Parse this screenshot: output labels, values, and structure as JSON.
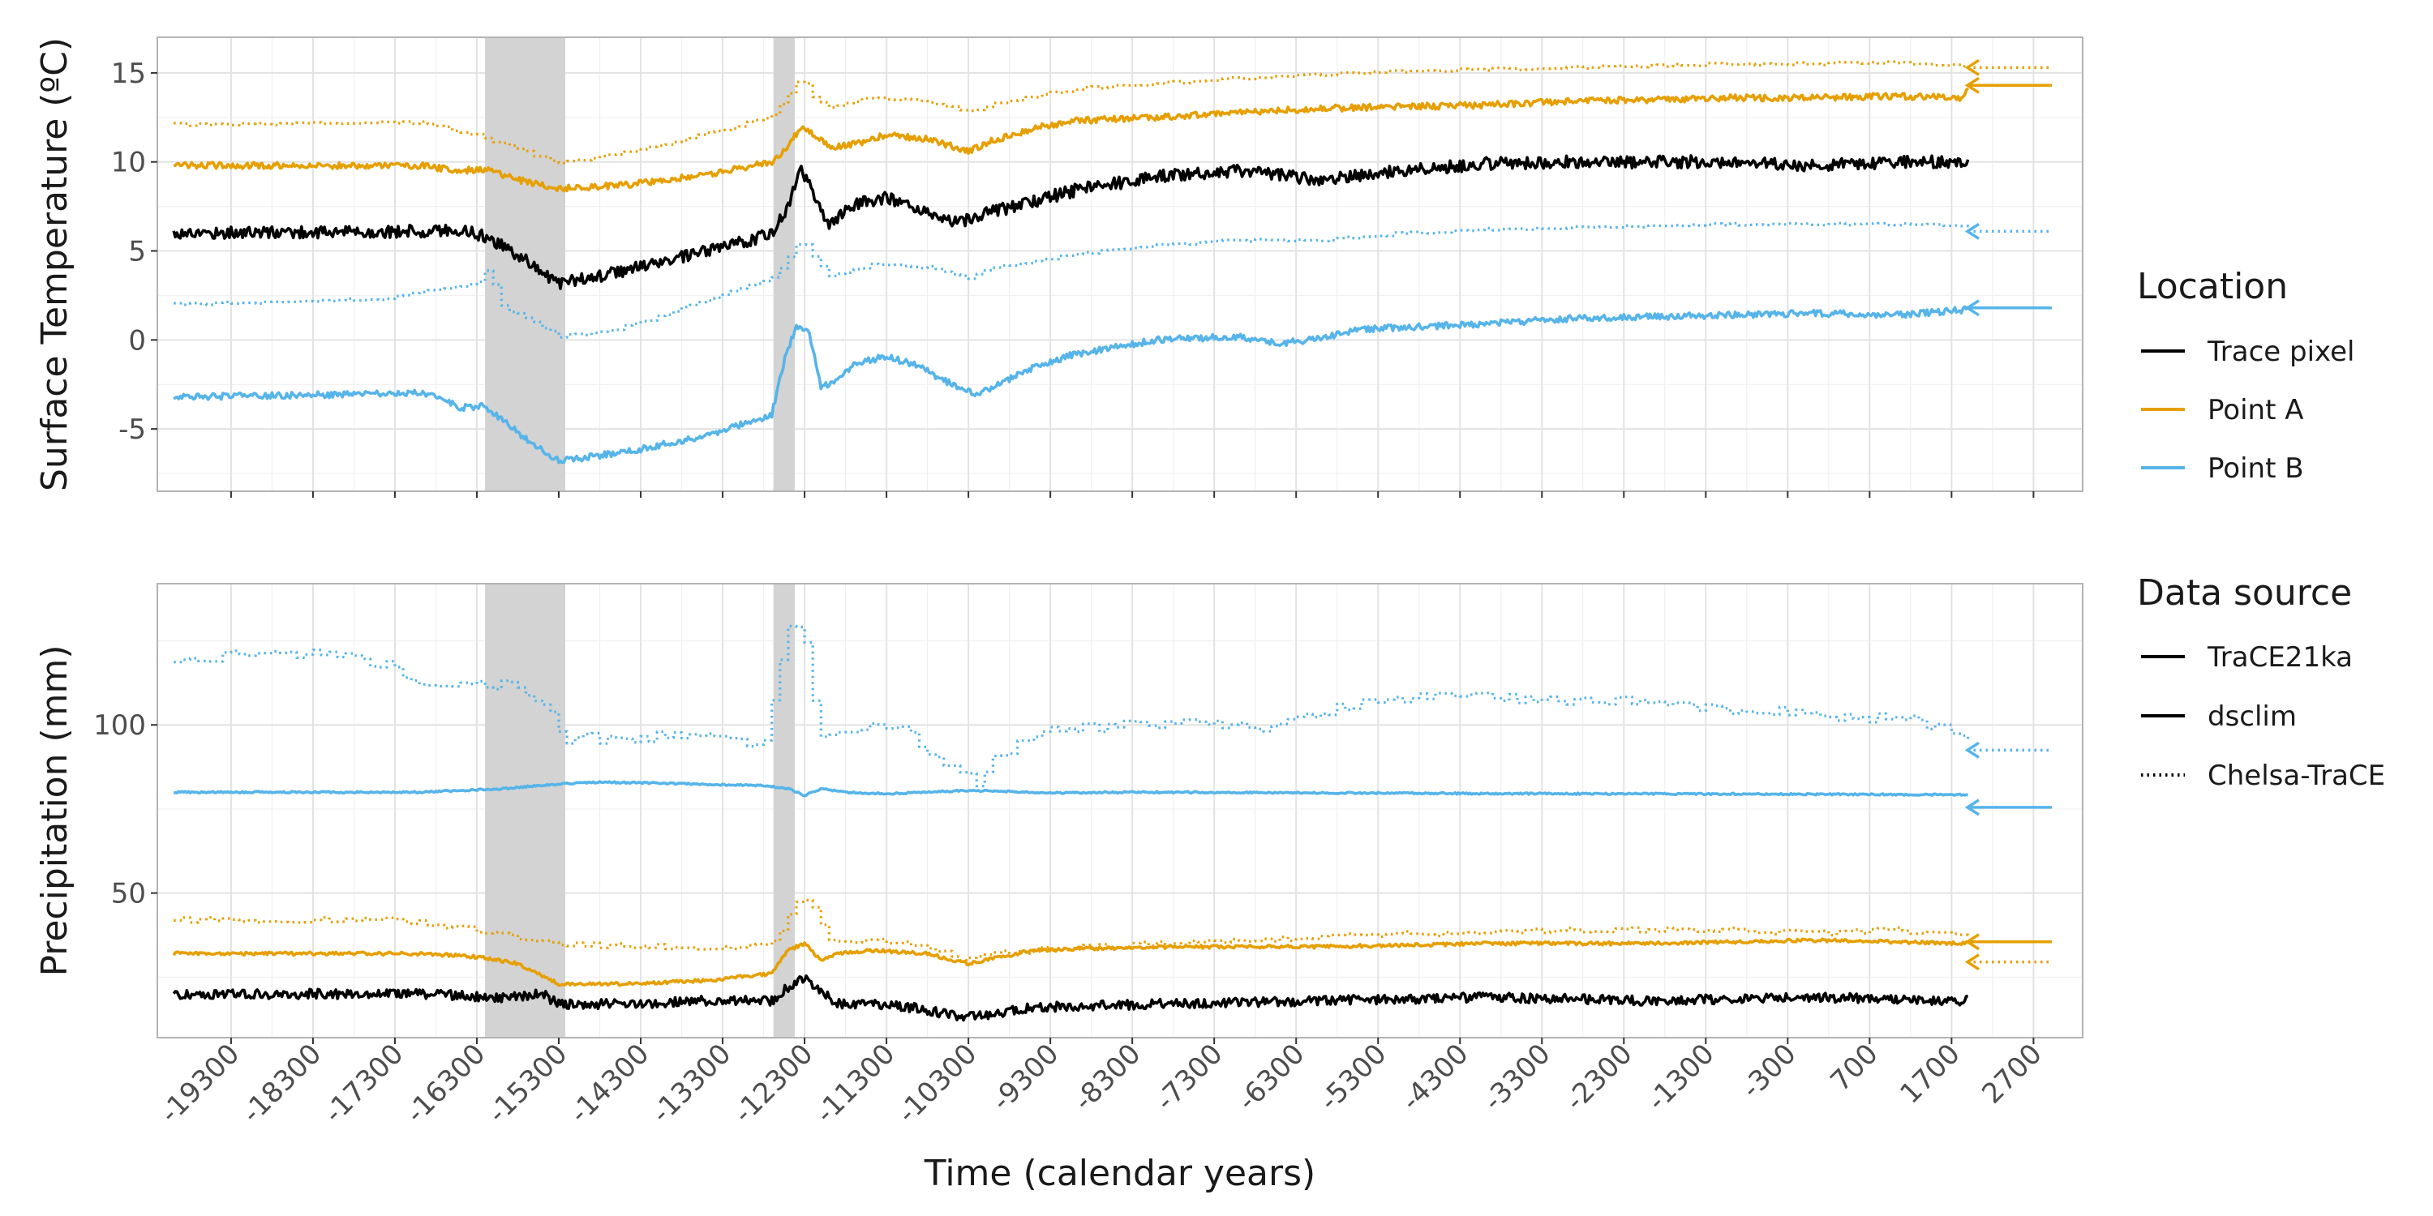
{
  "chart_data": {
    "type": "line",
    "xlabel": "Time (calendar years)",
    "xlim": [
      -20200,
      3300
    ],
    "x_ticks": [
      -19300,
      -18300,
      -17300,
      -16300,
      -15300,
      -14300,
      -13300,
      -12300,
      -11300,
      -10300,
      -9300,
      -8300,
      -7300,
      -6300,
      -5300,
      -4300,
      -3300,
      -2300,
      -1300,
      -300,
      700,
      1700,
      2700
    ],
    "x_tick_labels": [
      "-19300",
      "-18300",
      "-17300",
      "-16300",
      "-15300",
      "-14300",
      "-13300",
      "-12300",
      "-11300",
      "-10300",
      "-9300",
      "-8300",
      "-7300",
      "-6300",
      "-5300",
      "-4300",
      "-3300",
      "-2300",
      "-1300",
      "-300",
      "700",
      "1700",
      "2700"
    ],
    "shaded_intervals": [
      [
        -16200,
        -15220
      ],
      [
        -12680,
        -12420
      ]
    ],
    "grid": true,
    "legend_position": "right",
    "legends": {
      "location": {
        "title": "Location",
        "items": [
          {
            "label": "Trace pixel",
            "color": "#000000"
          },
          {
            "label": "Point A",
            "color": "#E69F00"
          },
          {
            "label": "Point B",
            "color": "#56B4E9"
          }
        ]
      },
      "source": {
        "title": "Data source",
        "items": [
          {
            "label": "TraCE21ka",
            "dash": "solid"
          },
          {
            "label": "dsclim",
            "dash": "solid"
          },
          {
            "label": "Chelsa-TraCE",
            "dash": "dotted"
          }
        ]
      }
    },
    "panels": [
      {
        "ylabel": "Surface Temperature (ºC)",
        "ylim": [
          -8.5,
          17
        ],
        "y_ticks": [
          -5,
          0,
          5,
          10,
          15
        ],
        "y_tick_labels": [
          "-5",
          "0",
          "5",
          "10",
          "15"
        ],
        "series": [
          {
            "location": "Trace pixel",
            "source": "TraCE21ka",
            "color": "#000000",
            "dash": "solid",
            "noise": 0.35,
            "x": [
              -20000,
              -17000,
              -16500,
              -16200,
              -15800,
              -15300,
              -14800,
              -14000,
              -13200,
              -12700,
              -12500,
              -12350,
              -12200,
              -12000,
              -11700,
              -11300,
              -10900,
              -10400,
              -10000,
              -9500,
              -9000,
              -8000,
              -7000,
              -6000,
              -5000,
              -4000,
              -3000,
              -2000,
              -1000,
              0,
              1000,
              1900
            ],
            "y": [
              6,
              6.1,
              6.2,
              5.8,
              4.8,
              3.2,
              3.6,
              4.4,
              5.3,
              6,
              7.5,
              9.6,
              8.3,
              6.4,
              7.6,
              8,
              7.2,
              6.6,
              7.2,
              7.8,
              8.4,
              9.2,
              9.5,
              9,
              9.5,
              9.9,
              10,
              10,
              10,
              9.8,
              10,
              10
            ]
          },
          {
            "location": "Point A",
            "source": "TraCE21ka",
            "color": "#E69F00",
            "dash": "solid",
            "noise": 0.18,
            "x": [
              -20000,
              -17000,
              -16500,
              -16200,
              -15800,
              -15300,
              -14500,
              -13500,
              -12700,
              -12500,
              -12350,
              -12150,
              -12000,
              -11700,
              -11300,
              -10800,
              -10300,
              -10000,
              -9500,
              -9000,
              -8000,
              -7000,
              -6000,
              -5000,
              -4000,
              -3000,
              -2000,
              -1000,
              0,
              1000,
              1800,
              1900
            ],
            "y": [
              9.8,
              9.8,
              9.5,
              9.6,
              9,
              8.5,
              8.7,
              9.3,
              10,
              10.8,
              12,
              11.4,
              10.8,
              11,
              11.5,
              11.3,
              10.6,
              11.2,
              11.9,
              12.3,
              12.5,
              12.8,
              13,
              13.1,
              13.2,
              13.4,
              13.5,
              13.6,
              13.6,
              13.7,
              13.6,
              14
            ]
          },
          {
            "location": "Point B",
            "source": "TraCE21ka",
            "color": "#56B4E9",
            "dash": "solid",
            "noise": 0.18,
            "x": [
              -20000,
              -17000,
              -16800,
              -16500,
              -16200,
              -15800,
              -15300,
              -14500,
              -13500,
              -12700,
              -12550,
              -12400,
              -12250,
              -12100,
              -11900,
              -11700,
              -11300,
              -10900,
              -10500,
              -10200,
              -9500,
              -9000,
              -8000,
              -7000,
              -6500,
              -6000,
              -5500,
              -5000,
              -4000,
              -3000,
              -2000,
              -1000,
              0,
              1000,
              1900
            ],
            "y": [
              -3.2,
              -3,
              -3.2,
              -3.8,
              -3.7,
              -5.2,
              -6.8,
              -6.3,
              -5.4,
              -4.2,
              -1.2,
              0.8,
              0.4,
              -2.6,
              -2.3,
              -1.4,
              -0.9,
              -1.5,
              -2.5,
              -3.1,
              -1.5,
              -0.8,
              0,
              0.2,
              -0.2,
              0.1,
              0.6,
              0.7,
              0.9,
              1.2,
              1.3,
              1.4,
              1.5,
              1.4,
              1.7
            ]
          },
          {
            "location": "Point A",
            "source": "Chelsa-TraCE",
            "color": "#E69F00",
            "dash": "dotted",
            "noise": 0.08,
            "step": 100,
            "x": [
              -20000,
              -17000,
              -16300,
              -15300,
              -14300,
              -13300,
              -12700,
              -12500,
              -12350,
              -12200,
              -12000,
              -11500,
              -10800,
              -10300,
              -10000,
              -9000,
              -8000,
              -7000,
              -6000,
              -5000,
              -4000,
              -3000,
              -2000,
              -1000,
              0,
              1000,
              1900
            ],
            "y": [
              12.1,
              12.2,
              11.5,
              9.9,
              10.7,
              11.8,
              12.6,
              13.9,
              14.7,
              13.6,
              13.1,
              13.6,
              13.4,
              12.8,
              13.3,
              14.1,
              14.4,
              14.7,
              14.9,
              15.1,
              15.2,
              15.3,
              15.4,
              15.5,
              15.5,
              15.6,
              15.4
            ]
          },
          {
            "location": "Point B",
            "source": "Chelsa-TraCE",
            "color": "#56B4E9",
            "dash": "dotted",
            "noise": 0.08,
            "step": 100,
            "x": [
              -20000,
              -17500,
              -16800,
              -16300,
              -16150,
              -16050,
              -15700,
              -15300,
              -14800,
              -14300,
              -13300,
              -12700,
              -12500,
              -12350,
              -12200,
              -12000,
              -11500,
              -10800,
              -10300,
              -10000,
              -9000,
              -8000,
              -7000,
              -6000,
              -5000,
              -4000,
              -3000,
              -2000,
              -1000,
              0,
              1000,
              1900
            ],
            "y": [
              2,
              2.3,
              2.8,
              3.2,
              4.2,
              2,
              1.2,
              0.2,
              0.4,
              1,
              2.6,
              3.5,
              4.7,
              5.8,
              4.7,
              3.6,
              4.2,
              4.1,
              3.4,
              4.1,
              4.8,
              5.3,
              5.6,
              5.6,
              6,
              6.2,
              6.3,
              6.4,
              6.5,
              6.5,
              6.5,
              6.4
            ]
          }
        ],
        "arrows": [
          {
            "y": 14.3,
            "color": "#E69F00",
            "dash": "solid"
          },
          {
            "y": 15.3,
            "color": "#E69F00",
            "dash": "dotted"
          },
          {
            "y": 6.1,
            "color": "#56B4E9",
            "dash": "dotted"
          },
          {
            "y": 1.8,
            "color": "#56B4E9",
            "dash": "solid"
          }
        ]
      },
      {
        "ylabel": "Precipitation (mm)",
        "ylim": [
          7,
          142
        ],
        "y_ticks": [
          50,
          100
        ],
        "y_tick_labels": [
          "50",
          "100"
        ],
        "series": [
          {
            "location": "Point B",
            "source": "TraCE21ka",
            "color": "#56B4E9",
            "dash": "solid",
            "noise": 0.25,
            "x": [
              -20000,
              -17000,
              -16000,
              -15300,
              -14800,
              -13800,
              -12800,
              -12500,
              -12300,
              -12100,
              -11800,
              -11300,
              -10300,
              -9300,
              -8000,
              -6000,
              -4000,
              -2000,
              0,
              1900
            ],
            "y": [
              80,
              80,
              81,
              82.5,
              83,
              82.5,
              82,
              81,
              79,
              81,
              80,
              79.5,
              80.5,
              79.8,
              80,
              79.8,
              79.6,
              79.5,
              79.4,
              79.2
            ]
          },
          {
            "location": "Point B",
            "source": "Chelsa-TraCE",
            "color": "#56B4E9",
            "dash": "dotted",
            "noise": 1.6,
            "step": 100,
            "x": [
              -20000,
              -19300,
              -18300,
              -17600,
              -17300,
              -16900,
              -16200,
              -15800,
              -15500,
              -15200,
              -14800,
              -13600,
              -12800,
              -12650,
              -12500,
              -12350,
              -12250,
              -12150,
              -11900,
              -11300,
              -11000,
              -10700,
              -10400,
              -10200,
              -10000,
              -9300,
              -8300,
              -7300,
              -6700,
              -6000,
              -5300,
              -4300,
              -3300,
              -2300,
              -1300,
              -300,
              700,
              1300,
              1900
            ],
            "y": [
              119,
              121,
              121,
              119,
              117,
              111,
              112,
              112,
              106,
              96,
              96,
              97,
              94,
              115,
              130,
              131,
              118,
              98,
              98,
              100,
              97,
              90,
              85,
              83,
              91,
              98,
              100,
              101,
              99,
              104,
              108,
              109,
              107,
              107,
              105,
              104,
              102,
              101,
              96
            ]
          },
          {
            "location": "Point A",
            "source": "Chelsa-TraCE",
            "color": "#E69F00",
            "dash": "dotted",
            "noise": 0.8,
            "step": 100,
            "x": [
              -20000,
              -17300,
              -16300,
              -15300,
              -14300,
              -13300,
              -12700,
              -12500,
              -12350,
              -12200,
              -12000,
              -11500,
              -10800,
              -10300,
              -10000,
              -9000,
              -8000,
              -7000,
              -6000,
              -5000,
              -4000,
              -3000,
              -2000,
              -1000,
              0,
              1000,
              1900
            ],
            "y": [
              42,
              42,
              39,
              35,
              34,
              34,
              35,
              44,
              49,
              45,
              36,
              36,
              34,
              30,
              32,
              34,
              35,
              36,
              37,
              38,
              38,
              39,
              39,
              39,
              38,
              39,
              37
            ]
          },
          {
            "location": "Point A",
            "source": "TraCE21ka",
            "color": "#E69F00",
            "dash": "solid",
            "noise": 0.5,
            "x": [
              -20000,
              -17000,
              -16300,
              -15800,
              -15300,
              -14500,
              -13500,
              -12700,
              -12500,
              -12300,
              -12100,
              -11900,
              -11500,
              -10800,
              -10300,
              -9500,
              -8000,
              -6000,
              -4000,
              -2000,
              0,
              1900
            ],
            "y": [
              32,
              32,
              31,
              29,
              23,
              23,
              24,
              26,
              33,
              35,
              30,
              32,
              33,
              32,
              29,
              33,
              34,
              34,
              35,
              35,
              36,
              35
            ]
          },
          {
            "location": "Trace pixel",
            "source": "TraCE21ka",
            "color": "#000000",
            "dash": "solid",
            "noise": 1.4,
            "x": [
              -20000,
              -17000,
              -16000,
              -15500,
              -15300,
              -14500,
              -13500,
              -12700,
              -12500,
              -12300,
              -12100,
              -11900,
              -11500,
              -11000,
              -10300,
              -9500,
              -8000,
              -6000,
              -4000,
              -2000,
              0,
              1900
            ],
            "y": [
              20,
              20,
              19,
              20,
              17,
              17,
              18,
              18,
              22,
              25,
              21,
              17,
              17,
              16,
              13,
              16,
              17,
              18,
              19,
              18,
              19,
              18
            ]
          }
        ],
        "arrows": [
          {
            "y": 92.5,
            "color": "#56B4E9",
            "dash": "dotted"
          },
          {
            "y": 75.5,
            "color": "#56B4E9",
            "dash": "solid"
          },
          {
            "y": 35.5,
            "color": "#E69F00",
            "dash": "solid"
          },
          {
            "y": 29.5,
            "color": "#E69F00",
            "dash": "dotted"
          }
        ]
      }
    ]
  }
}
